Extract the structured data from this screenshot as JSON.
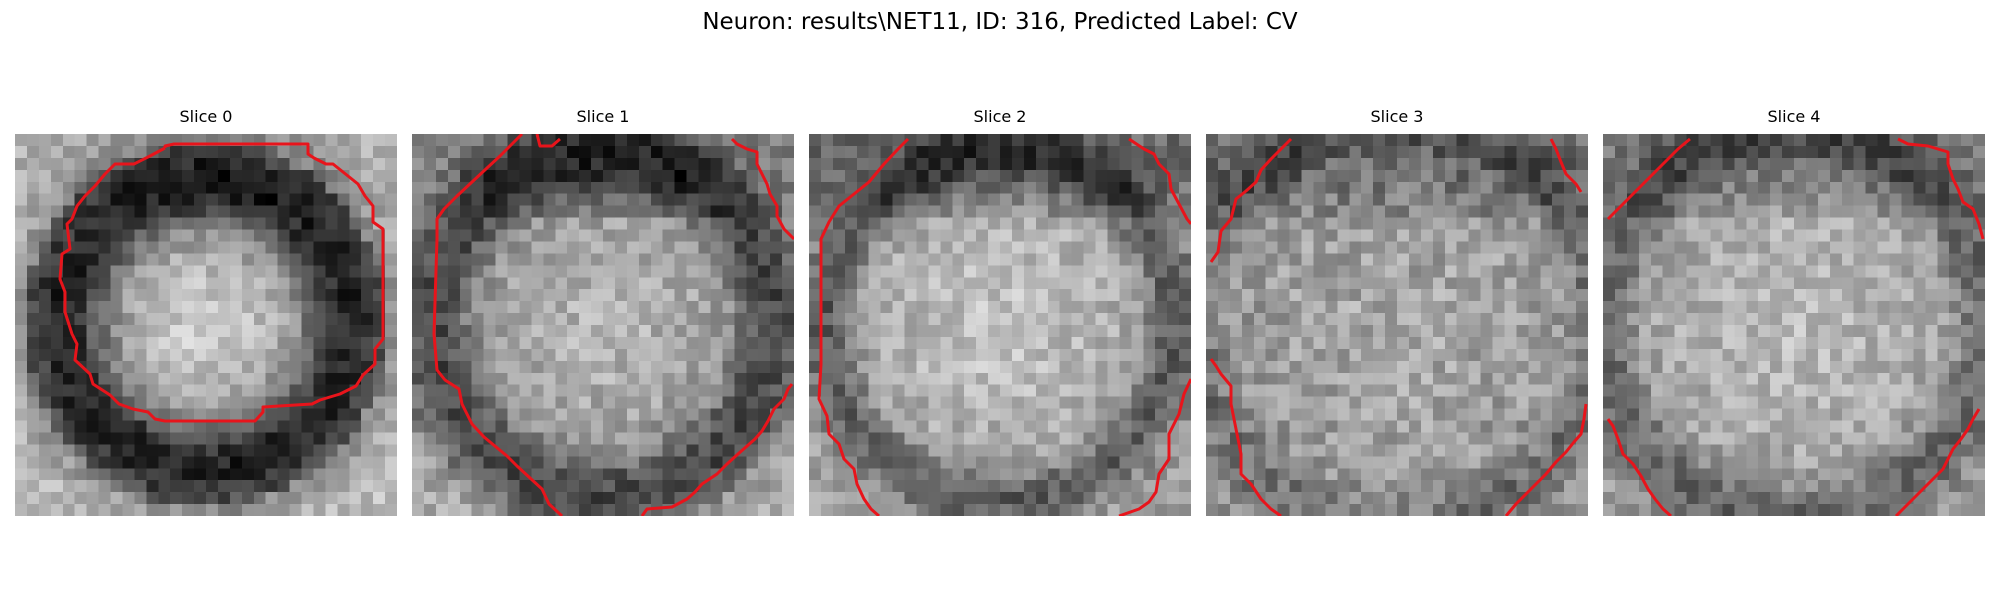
{
  "figure": {
    "title": "Neuron: results\\NET11, ID: 316, Predicted Label: CV",
    "contour_color": "#e8141b",
    "colormap": "gray"
  },
  "panels": [
    {
      "title": "Slice 0"
    },
    {
      "title": "Slice 1"
    },
    {
      "title": "Slice 2"
    },
    {
      "title": "Slice 3"
    },
    {
      "title": "Slice 4"
    }
  ]
}
